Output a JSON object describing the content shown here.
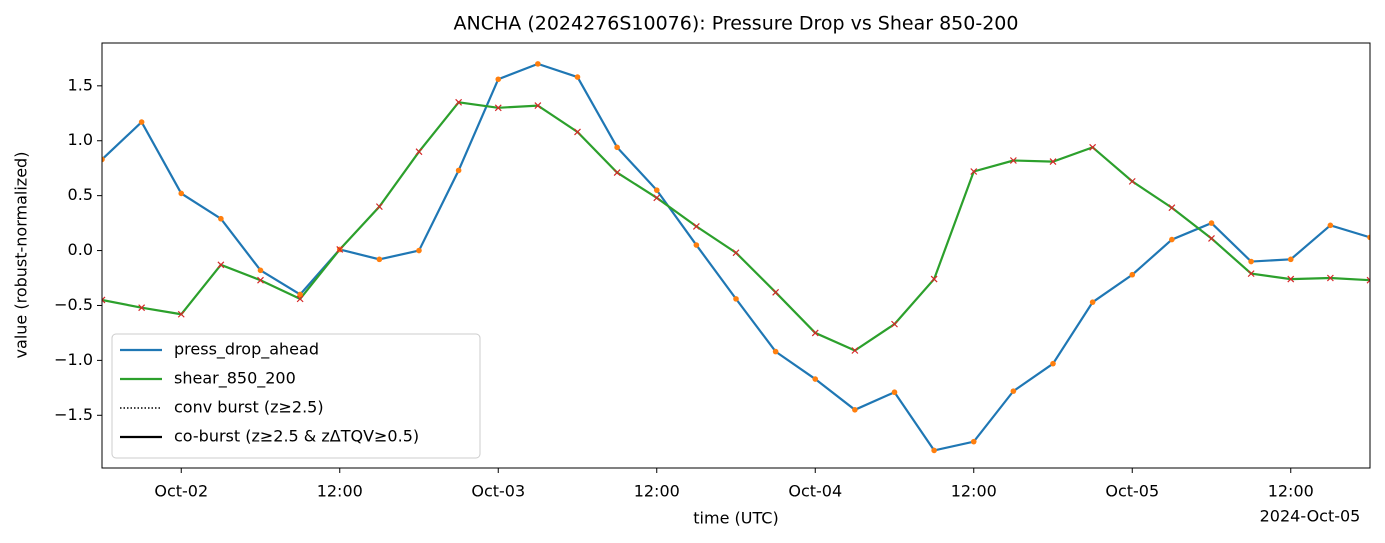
{
  "chart_data": {
    "type": "line",
    "title": "ANCHA (2024276S10076): Pressure Drop vs Shear 850-200",
    "xlabel": "time (UTC)",
    "ylabel": "value (robust-normalized)",
    "x_offset_label": "2024-Oct-05",
    "x": [
      "2024-10-01T18:00",
      "2024-10-01T21:00",
      "2024-10-02T00:00",
      "2024-10-02T03:00",
      "2024-10-02T06:00",
      "2024-10-02T09:00",
      "2024-10-02T12:00",
      "2024-10-02T15:00",
      "2024-10-02T18:00",
      "2024-10-02T21:00",
      "2024-10-03T00:00",
      "2024-10-03T03:00",
      "2024-10-03T06:00",
      "2024-10-03T09:00",
      "2024-10-03T12:00",
      "2024-10-03T15:00",
      "2024-10-03T18:00",
      "2024-10-03T21:00",
      "2024-10-04T00:00",
      "2024-10-04T03:00",
      "2024-10-04T06:00",
      "2024-10-04T09:00",
      "2024-10-04T12:00",
      "2024-10-04T15:00",
      "2024-10-04T18:00",
      "2024-10-04T21:00",
      "2024-10-05T00:00",
      "2024-10-05T03:00",
      "2024-10-05T06:00",
      "2024-10-05T09:00",
      "2024-10-05T12:00",
      "2024-10-05T15:00",
      "2024-10-05T18:00"
    ],
    "series": [
      {
        "name": "press_drop_ahead",
        "color": "#1f77b4",
        "marker": "dot",
        "marker_color": "#ff7f0e",
        "values": [
          0.83,
          1.17,
          0.52,
          0.29,
          -0.18,
          -0.4,
          0.01,
          -0.08,
          0.0,
          0.73,
          1.56,
          1.7,
          1.58,
          0.94,
          0.55,
          0.05,
          -0.44,
          -0.92,
          -1.17,
          -1.45,
          -1.29,
          -1.82,
          -1.74,
          -1.28,
          -1.03,
          -0.47,
          -0.22,
          0.1,
          0.25,
          -0.1,
          -0.08,
          0.23,
          0.12
        ]
      },
      {
        "name": "shear_850_200",
        "color": "#2ca02c",
        "marker": "x",
        "marker_color": "#d62728",
        "values": [
          -0.45,
          -0.52,
          -0.58,
          -0.13,
          -0.27,
          -0.44,
          0.01,
          0.4,
          0.9,
          1.35,
          1.3,
          1.32,
          1.08,
          0.71,
          0.48,
          0.22,
          -0.02,
          -0.38,
          -0.75,
          -0.91,
          -0.67,
          -0.26,
          0.72,
          0.82,
          0.81,
          0.94,
          0.63,
          0.39,
          0.11,
          -0.21,
          -0.26,
          -0.25,
          -0.27
        ]
      }
    ],
    "legend_extra": [
      {
        "name": "conv burst (z≥2.5)",
        "color": "#000000",
        "dash": "dotted"
      },
      {
        "name": "co-burst (z≥2.5 & zΔTQV≥0.5)",
        "color": "#000000",
        "dash": "solid"
      }
    ],
    "legend": "lower left",
    "xlim": [
      "2024-10-01T18:00",
      "2024-10-05T18:00"
    ],
    "xticks": [
      {
        "value": "2024-10-02T00:00",
        "label": "Oct-02"
      },
      {
        "value": "2024-10-02T12:00",
        "label": "12:00"
      },
      {
        "value": "2024-10-03T00:00",
        "label": "Oct-03"
      },
      {
        "value": "2024-10-03T12:00",
        "label": "12:00"
      },
      {
        "value": "2024-10-04T00:00",
        "label": "Oct-04"
      },
      {
        "value": "2024-10-04T12:00",
        "label": "12:00"
      },
      {
        "value": "2024-10-05T00:00",
        "label": "Oct-05"
      },
      {
        "value": "2024-10-05T12:00",
        "label": "12:00"
      }
    ],
    "ylim": [
      -1.98,
      1.89
    ],
    "yticks": [
      {
        "value": -1.5,
        "label": "−1.5"
      },
      {
        "value": -1.0,
        "label": "−1.0"
      },
      {
        "value": -0.5,
        "label": "−0.5"
      },
      {
        "value": 0,
        "label": "0.0"
      },
      {
        "value": 0.5,
        "label": "0.5"
      },
      {
        "value": 1.0,
        "label": "1.0"
      },
      {
        "value": 1.5,
        "label": "1.5"
      }
    ],
    "grid": false
  }
}
